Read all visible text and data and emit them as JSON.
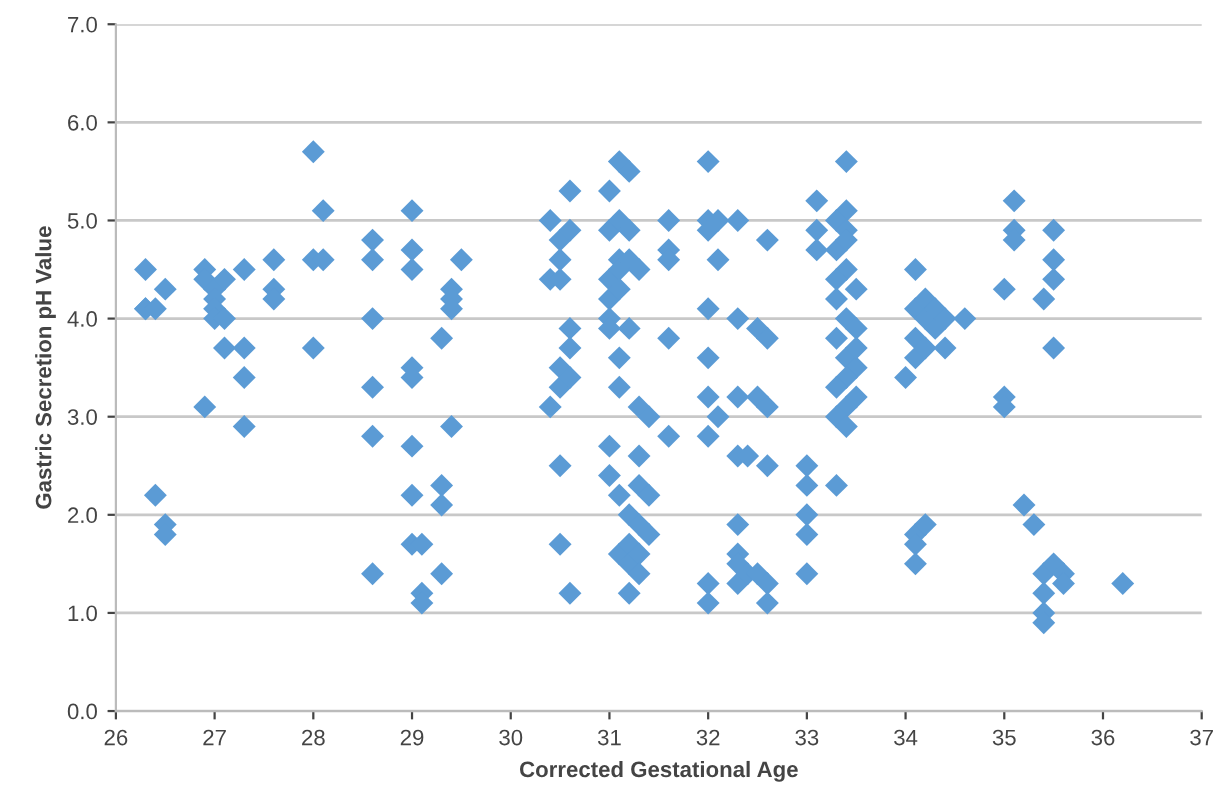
{
  "chart_data": {
    "type": "scatter",
    "xlabel": "Corrected Gestational Age",
    "ylabel": "Gastric Secretion pH Value",
    "marker": "diamond",
    "grid": "y",
    "xlim": [
      26,
      37
    ],
    "xticks": [
      26,
      27,
      28,
      29,
      30,
      31,
      32,
      33,
      34,
      35,
      36,
      37
    ],
    "ylim": [
      0,
      7
    ],
    "yticks": [
      {
        "value": 0,
        "label": "0.0"
      },
      {
        "value": 1,
        "label": "1.0"
      },
      {
        "value": 2,
        "label": "2.0"
      },
      {
        "value": 3,
        "label": "3.0"
      },
      {
        "value": 4,
        "label": "4.0"
      },
      {
        "value": 5,
        "label": "5.0"
      },
      {
        "value": 6,
        "label": "6.0"
      },
      {
        "value": 7,
        "label": "7.0"
      }
    ],
    "series": [
      {
        "color": "#5b9bd5",
        "x": [
          26.3,
          26.3,
          26.3,
          26.4,
          26.4,
          26.5,
          26.5,
          26.5,
          26.9,
          26.9,
          27.0,
          27.0,
          27.0,
          27.0,
          26.9,
          27.1,
          27.1,
          27.1,
          27.3,
          27.3,
          27.3,
          27.3,
          27.6,
          27.6,
          27.6,
          28.0,
          28.0,
          28.0,
          28.1,
          28.1,
          28.6,
          28.6,
          28.6,
          28.6,
          28.6,
          28.6,
          29.0,
          29.0,
          29.0,
          29.0,
          29.0,
          29.0,
          29.0,
          29.0,
          29.1,
          29.1,
          29.1,
          29.3,
          29.3,
          29.3,
          29.3,
          29.4,
          29.4,
          29.4,
          29.4,
          29.5,
          30.4,
          30.4,
          30.4,
          30.5,
          30.5,
          30.5,
          30.5,
          30.5,
          30.5,
          30.5,
          30.6,
          30.6,
          30.6,
          30.6,
          30.6,
          30.6,
          31.0,
          31.0,
          31.0,
          31.0,
          31.0,
          31.0,
          31.0,
          31.0,
          31.1,
          31.1,
          31.1,
          31.1,
          31.1,
          31.1,
          31.1,
          31.1,
          31.1,
          31.2,
          31.2,
          31.2,
          31.2,
          31.2,
          31.2,
          31.2,
          31.2,
          31.3,
          31.3,
          31.3,
          31.3,
          31.3,
          31.3,
          31.3,
          31.4,
          31.4,
          31.4,
          31.6,
          31.6,
          31.6,
          31.6,
          31.6,
          32.0,
          32.0,
          32.0,
          32.0,
          32.0,
          32.0,
          32.0,
          32.0,
          32.0,
          32.1,
          32.1,
          32.1,
          32.3,
          32.3,
          32.3,
          32.3,
          32.3,
          32.3,
          32.3,
          32.3,
          32.4,
          32.4,
          32.5,
          32.5,
          32.5,
          32.6,
          32.6,
          32.6,
          32.6,
          32.6,
          32.6,
          33.0,
          33.0,
          33.0,
          33.0,
          33.0,
          33.1,
          33.1,
          33.1,
          33.4,
          33.4,
          33.3,
          33.4,
          33.3,
          33.4,
          33.5,
          33.3,
          33.4,
          33.5,
          33.3,
          33.4,
          33.5,
          33.4,
          33.3,
          33.5,
          33.4,
          33.3,
          33.4,
          33.3,
          33.4,
          33.3,
          33.5,
          34.0,
          34.1,
          34.1,
          34.1,
          34.1,
          34.1,
          34.1,
          34.1,
          34.2,
          34.2,
          34.2,
          34.2,
          34.3,
          34.3,
          34.4,
          34.4,
          34.6,
          35.0,
          35.0,
          35.0,
          35.1,
          35.1,
          35.1,
          35.2,
          35.3,
          35.4,
          35.4,
          35.4,
          35.4,
          35.4,
          35.5,
          35.5,
          35.5,
          35.5,
          35.5,
          35.6,
          35.6,
          36.2
        ],
        "values": [
          4.5,
          4.1,
          4.1,
          4.1,
          2.2,
          4.3,
          1.9,
          1.8,
          4.5,
          4.4,
          4.3,
          4.2,
          4.1,
          4.0,
          3.1,
          4.4,
          4.0,
          3.7,
          4.5,
          3.7,
          3.4,
          2.9,
          4.6,
          4.3,
          4.2,
          5.7,
          4.6,
          3.7,
          5.1,
          4.6,
          4.8,
          4.6,
          4.0,
          3.3,
          2.8,
          1.4,
          5.1,
          4.7,
          4.5,
          3.5,
          3.4,
          2.7,
          2.2,
          1.7,
          1.7,
          1.2,
          1.1,
          3.8,
          2.3,
          2.1,
          1.4,
          4.3,
          4.2,
          4.1,
          2.9,
          4.6,
          5.0,
          4.4,
          3.1,
          4.8,
          4.6,
          4.4,
          3.5,
          3.3,
          2.5,
          1.7,
          5.3,
          4.9,
          3.9,
          3.7,
          3.4,
          1.2,
          5.3,
          4.9,
          4.4,
          4.2,
          4.0,
          3.9,
          2.7,
          2.4,
          5.6,
          5.0,
          4.6,
          4.5,
          4.3,
          3.6,
          3.3,
          2.2,
          1.6,
          5.5,
          4.9,
          4.6,
          3.9,
          2.0,
          1.7,
          1.5,
          1.2,
          4.5,
          3.1,
          2.6,
          2.3,
          1.9,
          1.6,
          1.4,
          3.0,
          2.2,
          1.8,
          5.0,
          4.7,
          4.6,
          3.8,
          2.8,
          5.6,
          5.0,
          4.9,
          4.1,
          3.6,
          3.2,
          2.8,
          1.3,
          1.1,
          5.0,
          4.6,
          3.0,
          5.0,
          4.0,
          3.2,
          2.6,
          1.9,
          1.6,
          1.5,
          1.3,
          2.6,
          1.4,
          3.9,
          3.2,
          1.4,
          4.8,
          3.8,
          3.1,
          2.5,
          1.3,
          1.1,
          2.5,
          2.3,
          2.0,
          1.8,
          1.4,
          5.2,
          4.9,
          4.7,
          5.6,
          5.1,
          5.0,
          4.9,
          4.7,
          4.5,
          4.3,
          4.2,
          4.0,
          3.9,
          3.8,
          3.6,
          3.5,
          3.4,
          3.3,
          3.2,
          3.1,
          3.0,
          2.9,
          2.3,
          4.8,
          4.4,
          3.7,
          3.4,
          4.5,
          4.1,
          3.8,
          3.6,
          1.8,
          1.7,
          1.5,
          4.2,
          4.0,
          3.7,
          1.9,
          4.1,
          3.9,
          4.0,
          3.7,
          4.0,
          4.3,
          3.2,
          3.1,
          5.2,
          4.9,
          4.8,
          2.1,
          1.9,
          4.2,
          1.4,
          1.2,
          1.0,
          0.9,
          4.9,
          4.6,
          4.4,
          3.7,
          1.5,
          1.4,
          1.3,
          1.3
        ]
      }
    ]
  }
}
